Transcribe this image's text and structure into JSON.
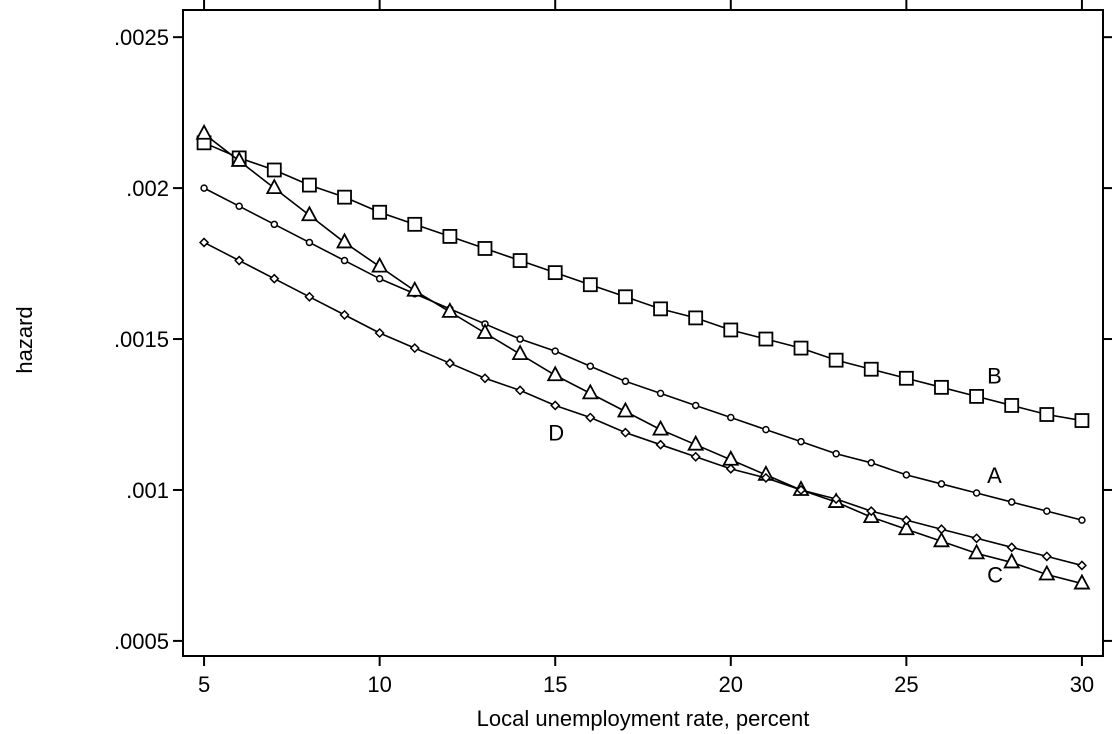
{
  "chart_data": {
    "type": "line",
    "xlabel": "Local unemployment rate, percent",
    "ylabel": "hazard",
    "xlim": [
      4.4,
      30.6
    ],
    "ylim": [
      0.00045,
      0.00259
    ],
    "x_ticks": [
      5,
      10,
      15,
      20,
      25,
      30
    ],
    "x_tick_labels": [
      "5",
      "10",
      "15",
      "20",
      "25",
      "30"
    ],
    "y_ticks": [
      0.0005,
      0.001,
      0.0015,
      0.002,
      0.0025
    ],
    "y_tick_labels": [
      ".0005",
      ".001",
      ".0015",
      ".002",
      ".0025"
    ],
    "grid": false,
    "legend": "none",
    "x": [
      5,
      6,
      7,
      8,
      9,
      10,
      11,
      12,
      13,
      14,
      15,
      16,
      17,
      18,
      19,
      20,
      21,
      22,
      23,
      24,
      25,
      26,
      27,
      28,
      29,
      30
    ],
    "series": [
      {
        "name": "A",
        "marker": "circle",
        "values": [
          0.002,
          0.00194,
          0.00188,
          0.00182,
          0.00176,
          0.0017,
          0.00165,
          0.0016,
          0.00155,
          0.0015,
          0.00146,
          0.00141,
          0.00136,
          0.00132,
          0.00128,
          0.00124,
          0.0012,
          0.00116,
          0.00112,
          0.00109,
          0.00105,
          0.00102,
          0.00099,
          0.00096,
          0.00093,
          0.0009
        ]
      },
      {
        "name": "B",
        "marker": "square",
        "values": [
          0.00215,
          0.0021,
          0.00206,
          0.00201,
          0.00197,
          0.00192,
          0.00188,
          0.00184,
          0.0018,
          0.00176,
          0.00172,
          0.00168,
          0.00164,
          0.0016,
          0.00157,
          0.00153,
          0.0015,
          0.00147,
          0.00143,
          0.0014,
          0.00137,
          0.00134,
          0.00131,
          0.00128,
          0.00125,
          0.00123
        ]
      },
      {
        "name": "C",
        "marker": "triangle",
        "values": [
          0.00218,
          0.00209,
          0.002,
          0.00191,
          0.00182,
          0.00174,
          0.00166,
          0.00159,
          0.00152,
          0.00145,
          0.00138,
          0.00132,
          0.00126,
          0.0012,
          0.00115,
          0.0011,
          0.00105,
          0.001,
          0.00096,
          0.00091,
          0.00087,
          0.00083,
          0.00079,
          0.00076,
          0.00072,
          0.00069
        ]
      },
      {
        "name": "D",
        "marker": "diamond",
        "values": [
          0.00182,
          0.00176,
          0.0017,
          0.00164,
          0.00158,
          0.00152,
          0.00147,
          0.00142,
          0.00137,
          0.00133,
          0.00128,
          0.00124,
          0.00119,
          0.00115,
          0.00111,
          0.00107,
          0.00104,
          0.001,
          0.00097,
          0.00093,
          0.0009,
          0.00087,
          0.00084,
          0.00081,
          0.00078,
          0.00075
        ]
      }
    ],
    "annotations": [
      {
        "text": "A",
        "x": 27.3,
        "y": 0.00105
      },
      {
        "text": "B",
        "x": 27.3,
        "y": 0.00138
      },
      {
        "text": "C",
        "x": 27.3,
        "y": 0.00072
      },
      {
        "text": "D",
        "x": 14.8,
        "y": 0.00119
      }
    ]
  }
}
